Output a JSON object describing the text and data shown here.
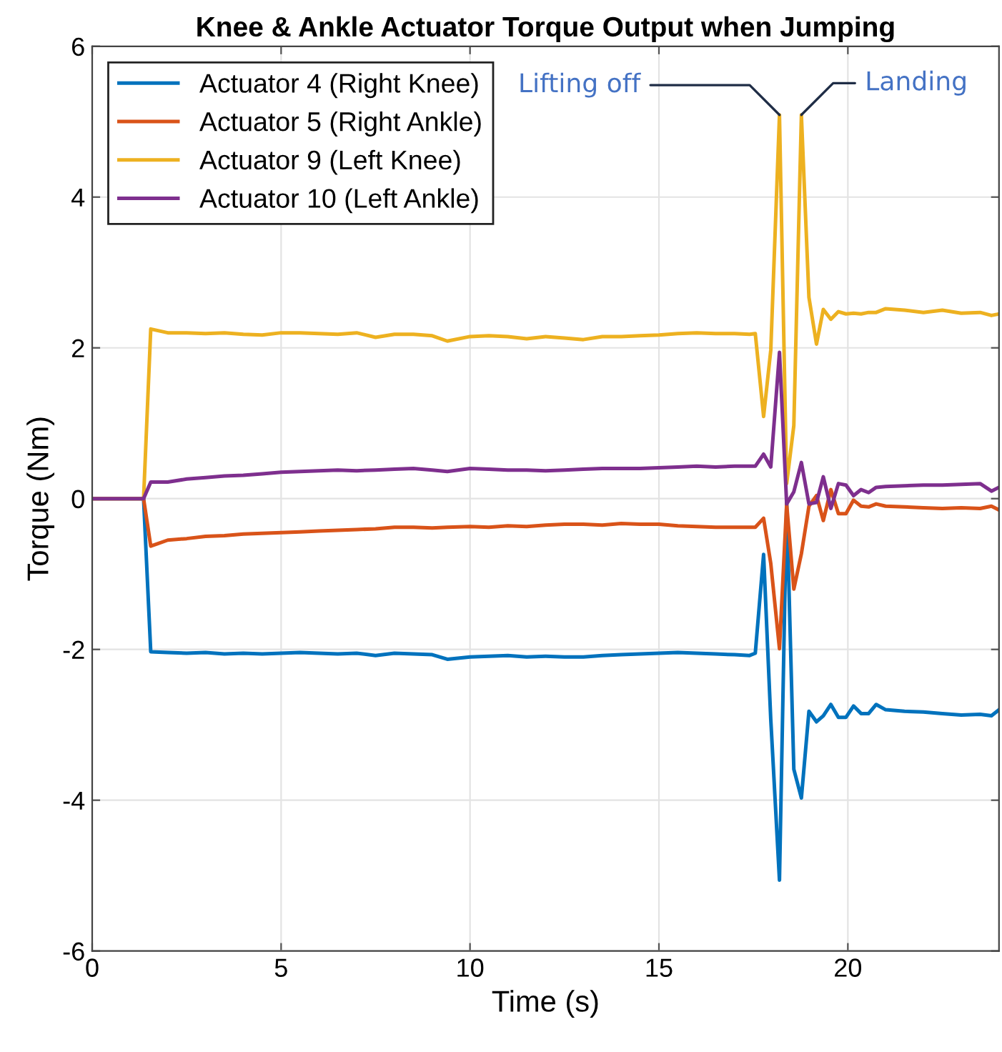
{
  "chart_data": {
    "type": "line",
    "title": "Knee & Ankle Actuator Torque Output when Jumping",
    "xlabel": "Time (s)",
    "ylabel": "Torque (Nm)",
    "x": [
      0,
      1.36,
      1.55,
      2,
      2.5,
      3,
      3.5,
      4,
      4.5,
      5,
      5.5,
      6,
      6.5,
      7,
      7.5,
      8,
      8.5,
      9,
      9.4,
      10,
      10.5,
      11,
      11.5,
      12,
      12.5,
      13,
      13.5,
      14,
      14.5,
      15,
      15.5,
      16,
      16.5,
      17,
      17.4,
      17.55,
      17.77,
      17.96,
      18.19,
      18.38,
      18.57,
      18.77,
      18.97,
      19.17,
      19.35,
      19.55,
      19.75,
      19.95,
      20.15,
      20.35,
      20.55,
      20.75,
      21,
      21.5,
      22,
      22.5,
      23,
      23.5,
      23.8,
      24
    ],
    "series": [
      {
        "name": "Actuator 4 (Right Knee)",
        "color": "#0072bd",
        "values": [
          0,
          0,
          -2.03,
          -2.04,
          -2.05,
          -2.04,
          -2.06,
          -2.05,
          -2.06,
          -2.05,
          -2.04,
          -2.05,
          -2.06,
          -2.05,
          -2.08,
          -2.05,
          -2.06,
          -2.07,
          -2.13,
          -2.1,
          -2.09,
          -2.08,
          -2.1,
          -2.09,
          -2.1,
          -2.1,
          -2.08,
          -2.07,
          -2.06,
          -2.05,
          -2.04,
          -2.05,
          -2.06,
          -2.07,
          -2.08,
          -2.05,
          -0.74,
          -2.93,
          -5.06,
          -0.04,
          -3.59,
          -3.97,
          -2.82,
          -2.96,
          -2.88,
          -2.73,
          -2.9,
          -2.9,
          -2.75,
          -2.85,
          -2.85,
          -2.73,
          -2.8,
          -2.82,
          -2.83,
          -2.85,
          -2.87,
          -2.86,
          -2.88,
          -2.8
        ]
      },
      {
        "name": "Actuator 5 (Right Ankle)",
        "color": "#d95319",
        "values": [
          0,
          0,
          -0.63,
          -0.55,
          -0.53,
          -0.5,
          -0.49,
          -0.47,
          -0.46,
          -0.45,
          -0.44,
          -0.43,
          -0.42,
          -0.41,
          -0.4,
          -0.38,
          -0.38,
          -0.39,
          -0.38,
          -0.37,
          -0.38,
          -0.36,
          -0.37,
          -0.35,
          -0.34,
          -0.34,
          -0.35,
          -0.33,
          -0.34,
          -0.34,
          -0.36,
          -0.37,
          -0.38,
          -0.38,
          -0.38,
          -0.38,
          -0.26,
          -0.86,
          -1.99,
          -0.07,
          -1.2,
          -0.73,
          -0.1,
          0.04,
          -0.29,
          0.12,
          -0.2,
          -0.2,
          -0.02,
          -0.1,
          -0.11,
          -0.07,
          -0.1,
          -0.11,
          -0.12,
          -0.13,
          -0.12,
          -0.13,
          -0.1,
          -0.15
        ]
      },
      {
        "name": "Actuator 9 (Left Knee)",
        "color": "#edb120",
        "values": [
          0,
          0,
          2.25,
          2.2,
          2.2,
          2.19,
          2.2,
          2.18,
          2.17,
          2.2,
          2.2,
          2.19,
          2.18,
          2.2,
          2.14,
          2.18,
          2.18,
          2.16,
          2.09,
          2.15,
          2.16,
          2.15,
          2.12,
          2.15,
          2.13,
          2.11,
          2.15,
          2.15,
          2.16,
          2.17,
          2.19,
          2.2,
          2.19,
          2.19,
          2.18,
          2.19,
          1.09,
          1.97,
          5.09,
          0.2,
          0.97,
          5.09,
          2.67,
          2.05,
          2.51,
          2.38,
          2.48,
          2.45,
          2.46,
          2.45,
          2.47,
          2.47,
          2.52,
          2.5,
          2.47,
          2.5,
          2.46,
          2.47,
          2.43,
          2.45
        ]
      },
      {
        "name": "Actuator 10 (Left Ankle)",
        "color": "#7e2f8e",
        "values": [
          0,
          0,
          0.22,
          0.22,
          0.26,
          0.28,
          0.3,
          0.31,
          0.33,
          0.35,
          0.36,
          0.37,
          0.38,
          0.37,
          0.38,
          0.39,
          0.4,
          0.38,
          0.36,
          0.4,
          0.39,
          0.38,
          0.38,
          0.37,
          0.38,
          0.39,
          0.4,
          0.4,
          0.4,
          0.41,
          0.42,
          0.43,
          0.42,
          0.43,
          0.43,
          0.43,
          0.59,
          0.42,
          1.94,
          -0.07,
          0.09,
          0.48,
          -0.07,
          -0.05,
          0.29,
          -0.13,
          0.2,
          0.18,
          0.04,
          0.12,
          0.08,
          0.15,
          0.16,
          0.17,
          0.18,
          0.18,
          0.19,
          0.2,
          0.1,
          0.15
        ]
      }
    ],
    "xlim": [
      0,
      24
    ],
    "xticks": [
      0,
      5,
      10,
      15,
      20
    ],
    "ylim": [
      -6,
      6
    ],
    "yticks": [
      -6,
      -4,
      -2,
      0,
      2,
      4,
      6
    ],
    "grid": true,
    "legend": "top left",
    "line_style": "solid",
    "marker": "none",
    "annotations": [
      {
        "text": "Lifting off",
        "x": 18.19,
        "y": 5.09
      },
      {
        "text": "Landing",
        "x": 18.77,
        "y": 5.09
      }
    ]
  }
}
